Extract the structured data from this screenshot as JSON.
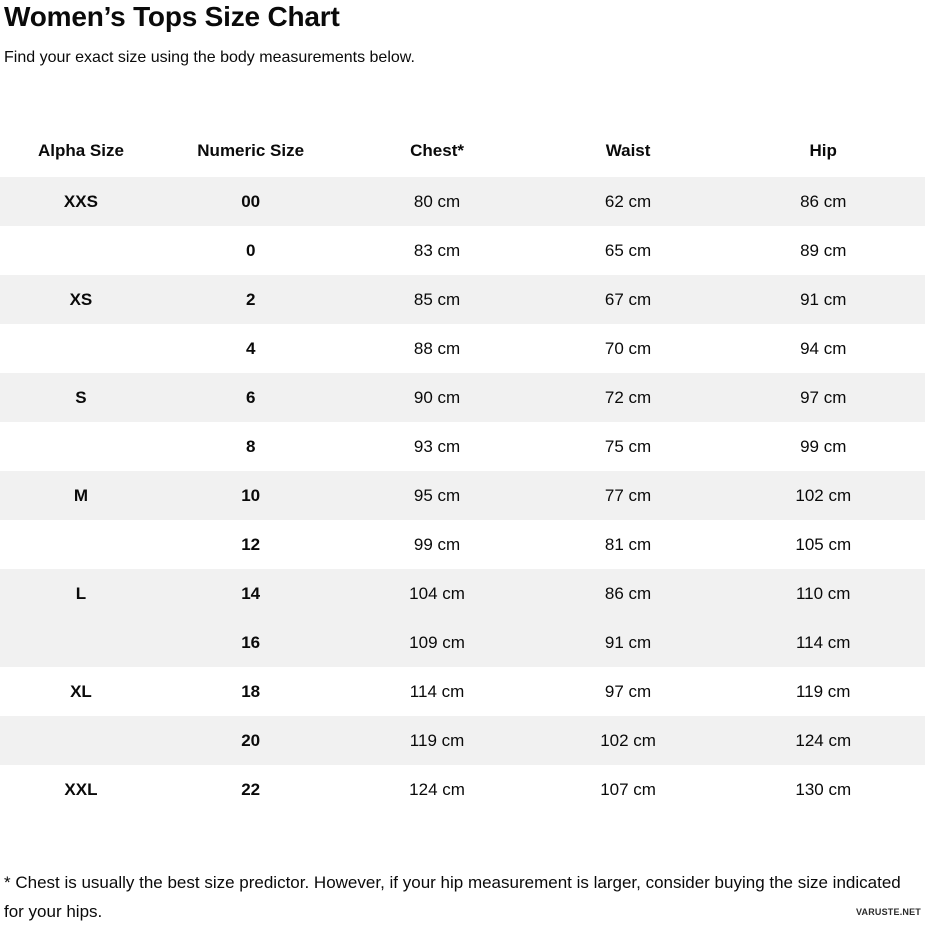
{
  "page": {
    "title": "Women’s Tops Size Chart",
    "subtitle": "Find your exact size using the body measurements below.",
    "footnote": "* Chest is usually the best size predictor. However, if your hip measurement is larger, consider buying the size indicated for your hips.",
    "watermark": "VARUSTE.NET"
  },
  "colors": {
    "row_shade": "#f1f1f1",
    "text": "#0a0a0a"
  },
  "chart_data": {
    "type": "table",
    "title": "Women’s Tops Size Chart",
    "subtitle": "Find your exact size using the body measurements below.",
    "columns": [
      "Alpha Size",
      "Numeric Size",
      "Chest*",
      "Waist",
      "Hip"
    ],
    "rows": [
      [
        "XXS",
        "00",
        "80 cm",
        "62 cm",
        "86 cm"
      ],
      [
        "",
        "0",
        "83 cm",
        "65 cm",
        "89 cm"
      ],
      [
        "XS",
        "2",
        "85 cm",
        "67 cm",
        "91 cm"
      ],
      [
        "",
        "4",
        "88 cm",
        "70 cm",
        "94 cm"
      ],
      [
        "S",
        "6",
        "90 cm",
        "72 cm",
        "97 cm"
      ],
      [
        "",
        "8",
        "93 cm",
        "75 cm",
        "99 cm"
      ],
      [
        "M",
        "10",
        "95 cm",
        "77 cm",
        "102 cm"
      ],
      [
        "",
        "12",
        "99 cm",
        "81 cm",
        "105 cm"
      ],
      [
        "L",
        "14",
        "104 cm",
        "86 cm",
        "110 cm"
      ],
      [
        "",
        "16",
        "109 cm",
        "91 cm",
        "114 cm"
      ],
      [
        "XL",
        "18",
        "114 cm",
        "97 cm",
        "119 cm"
      ],
      [
        "",
        "20",
        "119 cm",
        "102 cm",
        "124 cm"
      ],
      [
        "XXL",
        "22",
        "124 cm",
        "107 cm",
        "130 cm"
      ]
    ],
    "shaded_row_indices": [
      0,
      2,
      4,
      6,
      8,
      9,
      11
    ],
    "footnote": "* Chest is usually the best size predictor. However, if your hip measurement is larger, consider buying the size indicated for your hips."
  }
}
